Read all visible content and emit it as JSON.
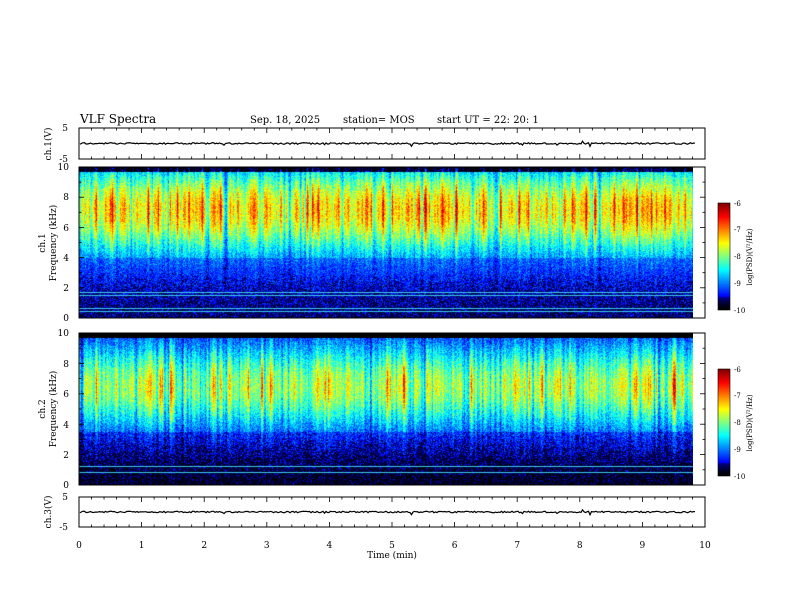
{
  "header": {
    "title": "VLF Spectra",
    "date": "Sep. 18, 2025",
    "station": "station= MOS",
    "start": "start  UT =   22: 20: 1"
  },
  "chart_data": [
    {
      "type": "line",
      "name": "ch1-waveform",
      "ylabel": "ch.1(V)",
      "ylim": [
        -5,
        5
      ],
      "yticks": [
        "5",
        "-5"
      ],
      "xlim": [
        0,
        10
      ],
      "trace_level": 0
    },
    {
      "type": "heatmap",
      "name": "ch1-spectrogram",
      "ylabel": "ch.1\nFrequency  (kHz)",
      "ylim": [
        0,
        10
      ],
      "yticks": [
        "0",
        "2",
        "4",
        "6",
        "8",
        "10"
      ],
      "xlim": [
        0,
        9.85
      ],
      "colorbar": {
        "label": "log(PSD)(V²/Hz)",
        "range": [
          -10,
          -6
        ],
        "ticks": [
          "-6",
          "-7",
          "-8",
          "-9",
          "-10"
        ]
      },
      "dominant_band_khz": [
        4.5,
        9.5
      ],
      "peak_band_khz": [
        6,
        9
      ],
      "peak_level": -6.5,
      "low_band_khz": [
        0,
        4
      ],
      "low_level": -9.6,
      "lines_khz": [
        0.4,
        0.6,
        1.5,
        1.7
      ]
    },
    {
      "type": "heatmap",
      "name": "ch2-spectrogram",
      "ylabel": "ch.2\nFrequency  (kHz)",
      "ylim": [
        0,
        10
      ],
      "yticks": [
        "0",
        "2",
        "4",
        "6",
        "8",
        "10"
      ],
      "xlim": [
        0,
        9.85
      ],
      "colorbar": {
        "label": "log(PSD)(V²/Hz)",
        "range": [
          -10,
          -6
        ],
        "ticks": [
          "-6",
          "-7",
          "-8",
          "-9",
          "-10"
        ]
      },
      "dominant_band_khz": [
        4.0,
        9.0
      ],
      "peak_band_khz": [
        5.5,
        7.5
      ],
      "peak_level": -7.0,
      "low_band_khz": [
        0,
        3.5
      ],
      "low_level": -9.8,
      "lines_khz": [
        0.8,
        1.2
      ]
    },
    {
      "type": "line",
      "name": "ch3-waveform",
      "ylabel": "ch.3(V)",
      "ylim": [
        -5,
        5
      ],
      "yticks": [
        "5",
        "-5"
      ],
      "xlim": [
        0,
        10
      ],
      "trace_level": 0
    }
  ],
  "xaxis": {
    "label": "Time  (min)",
    "ticks": [
      "0",
      "1",
      "2",
      "3",
      "4",
      "5",
      "6",
      "7",
      "8",
      "9",
      "10"
    ]
  },
  "colors": {
    "background": "#ffffff",
    "axis": "#000000",
    "jet_low": "#000000",
    "jet_high": "#ff0000"
  }
}
